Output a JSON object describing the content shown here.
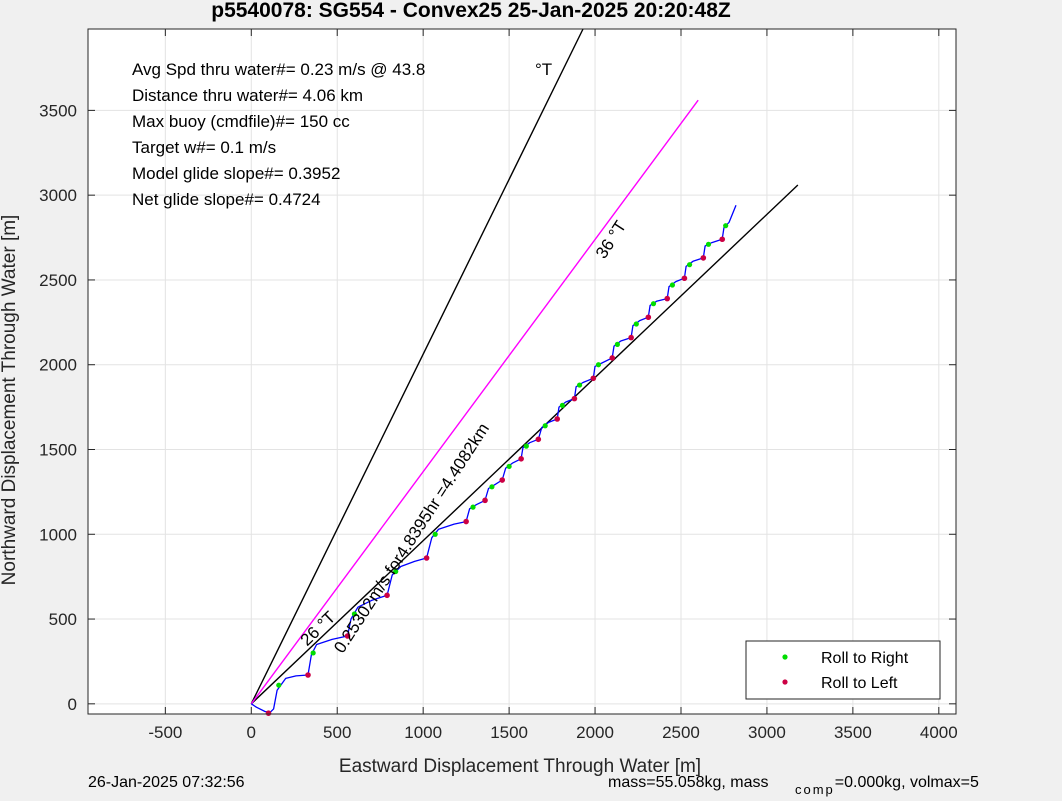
{
  "chart_data": {
    "type": "line",
    "title": "p5540078: SG554 - Convex25 25-Jan-2025 20:20:48Z",
    "xlabel": "Eastward Displacement Through Water [m]",
    "ylabel": "Northward Displacement Through Water [m]",
    "xlim": [
      -950,
      4100
    ],
    "ylim": [
      -60,
      3980
    ],
    "xticks": [
      -500,
      0,
      500,
      1000,
      1500,
      2000,
      2500,
      3000,
      3500,
      4000
    ],
    "yticks": [
      0,
      500,
      1000,
      1500,
      2000,
      2500,
      3000,
      3500
    ],
    "xtick_labels": [
      "-500",
      "0",
      "500",
      "1000",
      "1500",
      "2000",
      "2500",
      "3000",
      "3500",
      "4000"
    ],
    "ytick_labels": [
      "0",
      "500",
      "1000",
      "1500",
      "2000",
      "2500",
      "3000",
      "3500"
    ],
    "grid": true,
    "info_lines": [
      "Avg Spd thru water#=  0.23 m/s @  43.8",
      "Distance thru water#=  4.06 km",
      "Max buoy (cmdfile)#= 150 cc",
      "Target w#= 0.1 m/s",
      "Model glide slope#= 0.3952",
      "Net glide slope#= 0.4724"
    ],
    "info_unit": "°T",
    "reference_lines": [
      {
        "color": "#000000",
        "x": [
          0,
          1930
        ],
        "y": [
          0,
          3980
        ]
      },
      {
        "color": "#000000",
        "x": [
          0,
          3180
        ],
        "y": [
          0,
          3060
        ]
      },
      {
        "color": "#ff00ff",
        "x": [
          0,
          2600
        ],
        "y": [
          0,
          3560
        ]
      }
    ],
    "annotations": [
      {
        "text": "36 °T",
        "x": 2120,
        "y": 2720,
        "angle": -57
      },
      {
        "text": "26 °T",
        "x": 410,
        "y": 420,
        "angle": -44
      },
      {
        "text": "0.25302m/s for4.8395hr =4.4082km",
        "x": 960,
        "y": 960,
        "angle": -57
      }
    ],
    "track_points": [
      [
        0,
        0
      ],
      [
        30,
        -20
      ],
      [
        80,
        -45
      ],
      [
        110,
        -50
      ],
      [
        130,
        -30
      ],
      [
        150,
        80
      ],
      [
        200,
        150
      ],
      [
        260,
        165
      ],
      [
        330,
        170
      ],
      [
        350,
        290
      ],
      [
        380,
        350
      ],
      [
        470,
        380
      ],
      [
        560,
        400
      ],
      [
        580,
        500
      ],
      [
        620,
        570
      ],
      [
        700,
        610
      ],
      [
        790,
        640
      ],
      [
        820,
        760
      ],
      [
        870,
        810
      ],
      [
        950,
        840
      ],
      [
        1020,
        860
      ],
      [
        1050,
        980
      ],
      [
        1090,
        1030
      ],
      [
        1180,
        1060
      ],
      [
        1250,
        1075
      ],
      [
        1270,
        1150
      ],
      [
        1310,
        1175
      ],
      [
        1360,
        1200
      ],
      [
        1380,
        1270
      ],
      [
        1420,
        1295
      ],
      [
        1460,
        1320
      ],
      [
        1480,
        1390
      ],
      [
        1520,
        1420
      ],
      [
        1570,
        1445
      ],
      [
        1580,
        1510
      ],
      [
        1620,
        1540
      ],
      [
        1670,
        1560
      ],
      [
        1690,
        1630
      ],
      [
        1730,
        1660
      ],
      [
        1780,
        1680
      ],
      [
        1790,
        1750
      ],
      [
        1830,
        1780
      ],
      [
        1880,
        1800
      ],
      [
        1890,
        1870
      ],
      [
        1930,
        1895
      ],
      [
        1990,
        1920
      ],
      [
        2000,
        1990
      ],
      [
        2040,
        2010
      ],
      [
        2100,
        2040
      ],
      [
        2110,
        2110
      ],
      [
        2150,
        2140
      ],
      [
        2210,
        2160
      ],
      [
        2220,
        2230
      ],
      [
        2260,
        2260
      ],
      [
        2310,
        2280
      ],
      [
        2320,
        2350
      ],
      [
        2360,
        2375
      ],
      [
        2420,
        2390
      ],
      [
        2430,
        2460
      ],
      [
        2470,
        2490
      ],
      [
        2520,
        2510
      ],
      [
        2530,
        2580
      ],
      [
        2570,
        2610
      ],
      [
        2630,
        2630
      ],
      [
        2640,
        2700
      ],
      [
        2680,
        2720
      ],
      [
        2740,
        2740
      ],
      [
        2750,
        2810
      ],
      [
        2780,
        2840
      ],
      [
        2820,
        2940
      ]
    ],
    "roll_right_points": [
      [
        160,
        110
      ],
      [
        360,
        300
      ],
      [
        600,
        530
      ],
      [
        840,
        780
      ],
      [
        1070,
        1000
      ],
      [
        1290,
        1160
      ],
      [
        1400,
        1280
      ],
      [
        1500,
        1400
      ],
      [
        1600,
        1520
      ],
      [
        1710,
        1640
      ],
      [
        1810,
        1760
      ],
      [
        1910,
        1880
      ],
      [
        2020,
        2000
      ],
      [
        2130,
        2120
      ],
      [
        2240,
        2240
      ],
      [
        2340,
        2360
      ],
      [
        2450,
        2470
      ],
      [
        2550,
        2590
      ],
      [
        2660,
        2710
      ],
      [
        2760,
        2820
      ]
    ],
    "roll_left_points": [
      [
        100,
        -55
      ],
      [
        330,
        170
      ],
      [
        560,
        400
      ],
      [
        790,
        640
      ],
      [
        1020,
        860
      ],
      [
        1250,
        1075
      ],
      [
        1360,
        1200
      ],
      [
        1460,
        1320
      ],
      [
        1570,
        1445
      ],
      [
        1670,
        1560
      ],
      [
        1780,
        1680
      ],
      [
        1880,
        1800
      ],
      [
        1990,
        1920
      ],
      [
        2100,
        2040
      ],
      [
        2210,
        2160
      ],
      [
        2310,
        2280
      ],
      [
        2420,
        2390
      ],
      [
        2520,
        2510
      ],
      [
        2630,
        2630
      ],
      [
        2740,
        2740
      ]
    ],
    "legend": {
      "position": "bottom-right",
      "entries": [
        {
          "label": "Roll to Right",
          "color": "#00dd00"
        },
        {
          "label": "Roll to Left",
          "color": "#cc0044"
        }
      ]
    },
    "colors": {
      "track": "#0000ff",
      "magenta_line": "#ff00ff",
      "black_line": "#000000"
    }
  },
  "footer": {
    "timestamp": "26-Jan-2025 07:32:56",
    "mass_text": "mass=55.058kg, mass",
    "comp_sub": "comp",
    "volmax_text": "=0.000kg, volmax=5"
  }
}
